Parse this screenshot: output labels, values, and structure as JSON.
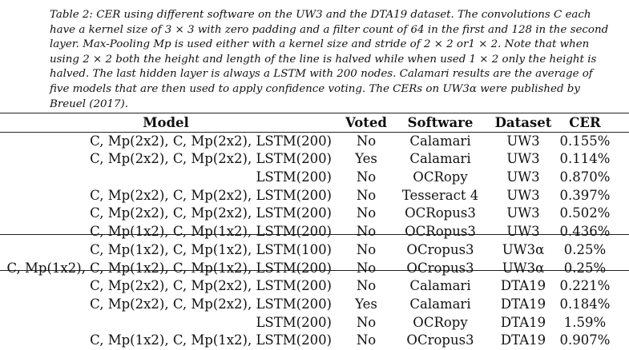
{
  "caption": "Table 2: CER using different software on the UW3 and the DTA19 dataset. The convolutions C each have a kernel size of 3 × 3 with zero padding and a filter count of 64 in the first and 128 in the second layer. Max-Pooling Mp is used either with a kernel size and stride of 2 × 2 or1 × 2. Note that when using 2 × 2 both the height and length of the line is halved while when used 1 × 2 only the height is halved. The last hidden layer is always a LSTM with 200 nodes. Calamari results are the average of five models that are then used to apply confidence voting. The CERs on UW3α were published by Breuel (2017).",
  "table": {
    "headers": {
      "model": "Model",
      "voted": "Voted",
      "software": "Software",
      "dataset": "Dataset",
      "cer": "CER"
    },
    "rows": [
      {
        "model": "C, Mp(2x2), C, Mp(2x2), LSTM(200)",
        "voted": "No",
        "software": "Calamari",
        "dataset": "UW3",
        "cer": "0.155%"
      },
      {
        "model": "C, Mp(2x2), C, Mp(2x2), LSTM(200)",
        "voted": "Yes",
        "software": "Calamari",
        "dataset": "UW3",
        "cer": "0.114%"
      },
      {
        "model": "LSTM(200)",
        "voted": "No",
        "software": "OCRopy",
        "dataset": "UW3",
        "cer": "0.870%"
      },
      {
        "model": "C, Mp(2x2), C, Mp(2x2), LSTM(200)",
        "voted": "No",
        "software": "Tesseract 4",
        "dataset": "UW3",
        "cer": "0.397%"
      },
      {
        "model": "C, Mp(2x2), C, Mp(2x2), LSTM(200)",
        "voted": "No",
        "software": "OCRopus3",
        "dataset": "UW3",
        "cer": "0.502%"
      },
      {
        "model": "C, Mp(1x2), C, Mp(1x2), LSTM(200)",
        "voted": "No",
        "software": "OCRopus3",
        "dataset": "UW3",
        "cer": "0.436%"
      },
      {
        "model": "C, Mp(1x2), C, Mp(1x2), LSTM(100)",
        "voted": "No",
        "software": "OCropus3",
        "dataset": "UW3α",
        "cer": "0.25%"
      },
      {
        "model": "C, Mp(1x2), C, Mp(1x2), C, Mp(1x2), LSTM(200)",
        "voted": "No",
        "software": "OCropus3",
        "dataset": "UW3α",
        "cer": "0.25%"
      },
      {
        "model": "C, Mp(2x2), C, Mp(2x2), LSTM(200)",
        "voted": "No",
        "software": "Calamari",
        "dataset": "DTA19",
        "cer": "0.221%"
      },
      {
        "model": "C, Mp(2x2), C, Mp(2x2), LSTM(200)",
        "voted": "Yes",
        "software": "Calamari",
        "dataset": "DTA19",
        "cer": "0.184%"
      },
      {
        "model": "LSTM(200)",
        "voted": "No",
        "software": "OCRopy",
        "dataset": "DTA19",
        "cer": "1.59%"
      },
      {
        "model": "C, Mp(1x2), C, Mp(1x2), LSTM(200)",
        "voted": "No",
        "software": "OCropus3",
        "dataset": "DTA19",
        "cer": "0.907%"
      }
    ]
  }
}
